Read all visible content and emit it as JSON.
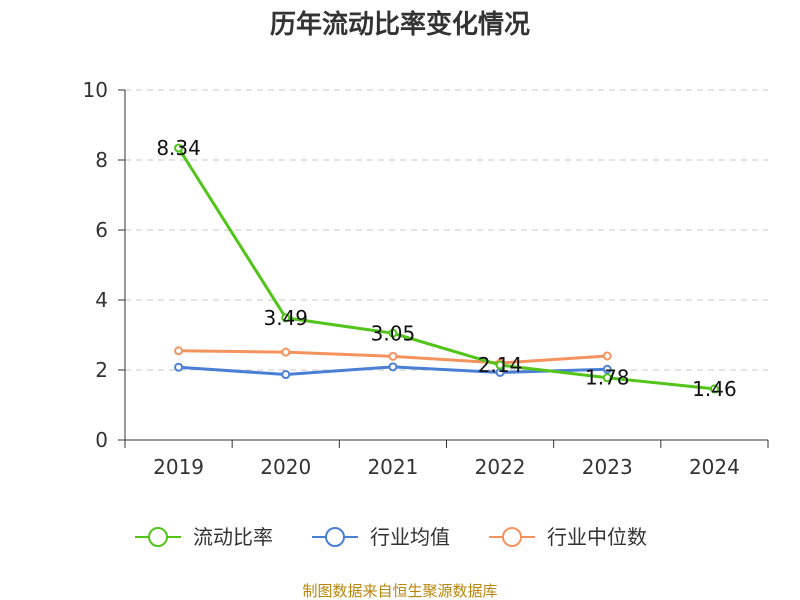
{
  "chart_data": {
    "type": "line",
    "title": "历年流动比率变化情况",
    "categories": [
      "2019",
      "2020",
      "2021",
      "2022",
      "2023",
      "2024"
    ],
    "ylim": [
      0,
      10
    ],
    "y_ticks": [
      "0",
      "2",
      "4",
      "6",
      "8",
      "10"
    ],
    "grid": "horizontal dashed",
    "legend_position": "bottom",
    "series": [
      {
        "name": "流动比率",
        "color": "#52c41a",
        "values": [
          8.34,
          3.49,
          3.05,
          2.14,
          1.78,
          1.46
        ],
        "data_labels": [
          "8.34",
          "3.49",
          "3.05",
          "2.14",
          "1.78",
          "1.46"
        ]
      },
      {
        "name": "行业均值",
        "color": "#4a7fd6",
        "values": [
          2.08,
          1.87,
          2.09,
          1.93,
          2.02,
          null
        ]
      },
      {
        "name": "行业中位数",
        "color": "#f5935f",
        "values": [
          2.55,
          2.51,
          2.39,
          2.2,
          2.4,
          null
        ]
      }
    ]
  },
  "source": "制图数据来自恒生聚源数据库"
}
